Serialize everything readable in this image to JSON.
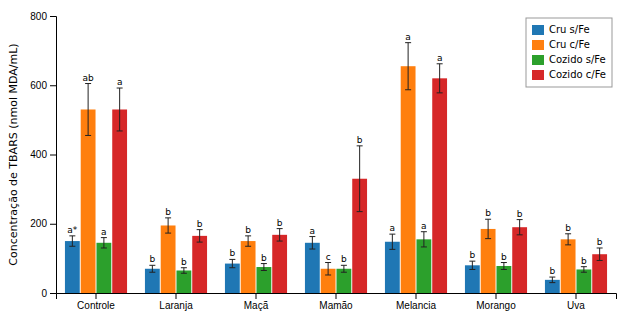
{
  "chart_data": {
    "type": "bar",
    "categories": [
      "Controle",
      "Laranja",
      "Maçã",
      "Mamão",
      "Melancia",
      "Morango",
      "Uva"
    ],
    "series": [
      {
        "name": "Cru s/Fe",
        "values": [
          150,
          70,
          85,
          145,
          148,
          80,
          38
        ],
        "errors": [
          15,
          10,
          12,
          18,
          22,
          12,
          8
        ],
        "annotations": [
          "a*",
          "b",
          "b",
          "a",
          "a",
          "b",
          "b"
        ]
      },
      {
        "name": "Cru c/Fe",
        "values": [
          530,
          195,
          150,
          70,
          655,
          185,
          155
        ],
        "errors": [
          75,
          22,
          15,
          18,
          68,
          28,
          16
        ],
        "annotations": [
          "ab",
          "b",
          "b",
          "c",
          "a",
          "b",
          "b"
        ]
      },
      {
        "name": "Cozido s/Fe",
        "values": [
          145,
          65,
          75,
          70,
          155,
          78,
          68
        ],
        "errors": [
          15,
          8,
          10,
          10,
          22,
          10,
          8
        ],
        "annotations": [
          "a",
          "b",
          "b",
          "b",
          "a",
          "b",
          "b"
        ]
      },
      {
        "name": "Cozido c/Fe",
        "values": [
          530,
          165,
          168,
          330,
          620,
          190,
          112
        ],
        "errors": [
          62,
          18,
          18,
          95,
          42,
          22,
          18
        ],
        "annotations": [
          "a",
          "b",
          "b",
          "b",
          "a",
          "b",
          "b"
        ]
      }
    ],
    "y_label": "Concentração de TBARS (nmol MDA/mL)",
    "ylim": [
      0,
      800
    ],
    "yticks": [
      0,
      200,
      400,
      600,
      800
    ],
    "grid": false,
    "legend": "upper right"
  }
}
